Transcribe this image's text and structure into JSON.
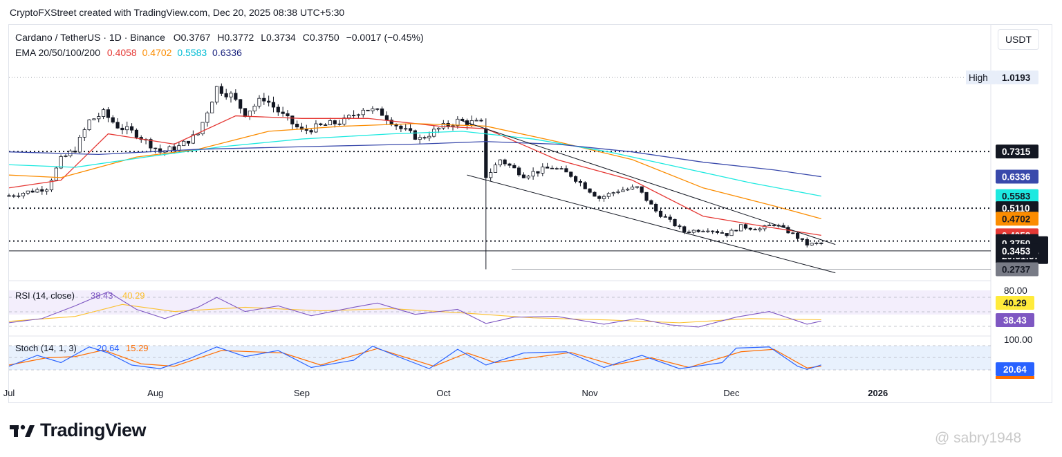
{
  "header": {
    "created_line": "CryptoFXStreet created with TradingView.com, Dec 20, 2025 08:38 UTC+5:30",
    "symbol": "Cardano / TetherUS · 1D · Binance",
    "o_label": "O",
    "o_value": "0.3767",
    "h_label": "H",
    "h_value": "0.3772",
    "l_label": "L",
    "l_value": "0.3734",
    "c_label": "C",
    "c_value": "0.3750",
    "change": "−0.0017 (−0.45%)",
    "ema_label": "EMA 20/50/100/200",
    "ema_values": [
      "0.4058",
      "0.4702",
      "0.5583",
      "0.6336"
    ]
  },
  "currency_button": "USDT",
  "brand": {
    "name": "TradingView",
    "watermark": "@ sabry1948"
  },
  "colors": {
    "up": "#ffffff",
    "down": "#131722",
    "ema20": "#e53935",
    "ema50": "#fb8c00",
    "ema100": "#1de9e0",
    "ema200": "#3949ab",
    "rsi": "#7e57c2",
    "rsi_ma": "#fbc02d",
    "stoch_k": "#2962ff",
    "stoch_d": "#ff6d00",
    "channel": "#131722"
  },
  "chart_data": [
    {
      "type": "candlestick",
      "symbol": "ADA/USDT",
      "timeframe": "1D",
      "x_labels": [
        "Jul",
        "Aug",
        "Sep",
        "Oct",
        "Nov",
        "Dec",
        "2026"
      ],
      "x_range": [
        "2025-07-01",
        "2026-01-08"
      ],
      "y_range": [
        0.25,
        1.05
      ],
      "close_path": [
        {
          "d": "2025-07-01",
          "v": 0.56
        },
        {
          "d": "2025-07-05",
          "v": 0.575
        },
        {
          "d": "2025-07-09",
          "v": 0.59
        },
        {
          "d": "2025-07-12",
          "v": 0.7
        },
        {
          "d": "2025-07-15",
          "v": 0.74
        },
        {
          "d": "2025-07-18",
          "v": 0.85
        },
        {
          "d": "2025-07-21",
          "v": 0.88
        },
        {
          "d": "2025-07-24",
          "v": 0.83
        },
        {
          "d": "2025-07-28",
          "v": 0.8
        },
        {
          "d": "2025-08-02",
          "v": 0.73
        },
        {
          "d": "2025-08-06",
          "v": 0.75
        },
        {
          "d": "2025-08-10",
          "v": 0.8
        },
        {
          "d": "2025-08-14",
          "v": 0.98
        },
        {
          "d": "2025-08-17",
          "v": 0.95
        },
        {
          "d": "2025-08-20",
          "v": 0.88
        },
        {
          "d": "2025-08-24",
          "v": 0.94
        },
        {
          "d": "2025-08-28",
          "v": 0.87
        },
        {
          "d": "2025-09-01",
          "v": 0.81
        },
        {
          "d": "2025-09-05",
          "v": 0.83
        },
        {
          "d": "2025-09-10",
          "v": 0.85
        },
        {
          "d": "2025-09-14",
          "v": 0.9
        },
        {
          "d": "2025-09-18",
          "v": 0.88
        },
        {
          "d": "2025-09-22",
          "v": 0.82
        },
        {
          "d": "2025-09-26",
          "v": 0.78
        },
        {
          "d": "2025-09-30",
          "v": 0.82
        },
        {
          "d": "2025-10-04",
          "v": 0.85
        },
        {
          "d": "2025-10-09",
          "v": 0.84
        },
        {
          "d": "2025-10-10",
          "v": 0.63
        },
        {
          "d": "2025-10-13",
          "v": 0.7
        },
        {
          "d": "2025-10-18",
          "v": 0.64
        },
        {
          "d": "2025-10-24",
          "v": 0.67
        },
        {
          "d": "2025-10-28",
          "v": 0.64
        },
        {
          "d": "2025-11-03",
          "v": 0.55
        },
        {
          "d": "2025-11-07",
          "v": 0.58
        },
        {
          "d": "2025-11-11",
          "v": 0.59
        },
        {
          "d": "2025-11-15",
          "v": 0.5
        },
        {
          "d": "2025-11-21",
          "v": 0.42
        },
        {
          "d": "2025-11-26",
          "v": 0.43
        },
        {
          "d": "2025-11-30",
          "v": 0.41
        },
        {
          "d": "2025-12-03",
          "v": 0.44
        },
        {
          "d": "2025-12-07",
          "v": 0.43
        },
        {
          "d": "2025-12-10",
          "v": 0.45
        },
        {
          "d": "2025-12-14",
          "v": 0.41
        },
        {
          "d": "2025-12-17",
          "v": 0.37
        },
        {
          "d": "2025-12-20",
          "v": 0.375
        }
      ],
      "ema": [
        {
          "name": "EMA 20",
          "last": 0.4058,
          "points": [
            {
              "d": "2025-07-01",
              "v": 0.59
            },
            {
              "d": "2025-07-12",
              "v": 0.62
            },
            {
              "d": "2025-07-22",
              "v": 0.8
            },
            {
              "d": "2025-08-05",
              "v": 0.76
            },
            {
              "d": "2025-08-18",
              "v": 0.87
            },
            {
              "d": "2025-09-01",
              "v": 0.86
            },
            {
              "d": "2025-09-15",
              "v": 0.86
            },
            {
              "d": "2025-09-30",
              "v": 0.83
            },
            {
              "d": "2025-10-10",
              "v": 0.82
            },
            {
              "d": "2025-10-25",
              "v": 0.7
            },
            {
              "d": "2025-11-10",
              "v": 0.62
            },
            {
              "d": "2025-11-25",
              "v": 0.48
            },
            {
              "d": "2025-12-08",
              "v": 0.44
            },
            {
              "d": "2025-12-20",
              "v": 0.4058
            }
          ]
        },
        {
          "name": "EMA 50",
          "last": 0.4702,
          "points": [
            {
              "d": "2025-07-01",
              "v": 0.64
            },
            {
              "d": "2025-07-12",
              "v": 0.63
            },
            {
              "d": "2025-07-28",
              "v": 0.71
            },
            {
              "d": "2025-08-10",
              "v": 0.74
            },
            {
              "d": "2025-08-25",
              "v": 0.81
            },
            {
              "d": "2025-09-10",
              "v": 0.83
            },
            {
              "d": "2025-09-25",
              "v": 0.84
            },
            {
              "d": "2025-10-10",
              "v": 0.83
            },
            {
              "d": "2025-10-25",
              "v": 0.77
            },
            {
              "d": "2025-11-10",
              "v": 0.7
            },
            {
              "d": "2025-11-25",
              "v": 0.59
            },
            {
              "d": "2025-12-10",
              "v": 0.52
            },
            {
              "d": "2025-12-20",
              "v": 0.4702
            }
          ]
        },
        {
          "name": "EMA 100",
          "last": 0.5583,
          "points": [
            {
              "d": "2025-07-01",
              "v": 0.68
            },
            {
              "d": "2025-07-15",
              "v": 0.67
            },
            {
              "d": "2025-07-30",
              "v": 0.71
            },
            {
              "d": "2025-08-15",
              "v": 0.75
            },
            {
              "d": "2025-09-01",
              "v": 0.78
            },
            {
              "d": "2025-09-20",
              "v": 0.8
            },
            {
              "d": "2025-10-05",
              "v": 0.81
            },
            {
              "d": "2025-10-20",
              "v": 0.78
            },
            {
              "d": "2025-11-05",
              "v": 0.73
            },
            {
              "d": "2025-11-20",
              "v": 0.67
            },
            {
              "d": "2025-12-05",
              "v": 0.61
            },
            {
              "d": "2025-12-20",
              "v": 0.5583
            }
          ]
        },
        {
          "name": "EMA 200",
          "last": 0.6336,
          "points": [
            {
              "d": "2025-07-01",
              "v": 0.73
            },
            {
              "d": "2025-07-20",
              "v": 0.72
            },
            {
              "d": "2025-08-10",
              "v": 0.74
            },
            {
              "d": "2025-09-01",
              "v": 0.75
            },
            {
              "d": "2025-09-25",
              "v": 0.76
            },
            {
              "d": "2025-10-10",
              "v": 0.77
            },
            {
              "d": "2025-10-25",
              "v": 0.76
            },
            {
              "d": "2025-11-10",
              "v": 0.73
            },
            {
              "d": "2025-11-25",
              "v": 0.69
            },
            {
              "d": "2025-12-10",
              "v": 0.66
            },
            {
              "d": "2025-12-20",
              "v": 0.6336
            }
          ]
        }
      ],
      "channel_lines": [
        {
          "from": {
            "d": "2025-10-05",
            "v": 0.85
          },
          "to": {
            "d": "2025-12-23",
            "v": 0.37
          }
        },
        {
          "from": {
            "d": "2025-10-06",
            "v": 0.64
          },
          "to": {
            "d": "2025-12-23",
            "v": 0.26
          }
        }
      ],
      "horizontal_levels": [
        0.7315,
        0.511,
        0.3836,
        0.3453
      ],
      "high_line": 1.0193,
      "low_line": 0.2737,
      "price_labels": [
        {
          "value": "1.0193",
          "label": "High"
        },
        {
          "value": "0.7315"
        },
        {
          "value": "0.6336"
        },
        {
          "value": "0.5583"
        },
        {
          "value": "0.5110"
        },
        {
          "value": "0.4702"
        },
        {
          "value": "0.4058"
        },
        {
          "value": "0.3836"
        },
        {
          "value": "0.3750",
          "sub": "20:51:57"
        },
        {
          "value": "0.3453"
        },
        {
          "value": "0.2737"
        }
      ]
    },
    {
      "type": "line",
      "name": "RSI (14, close)",
      "values_shown": [
        "38.43",
        "40.29"
      ],
      "level_label": "80.00",
      "series": [
        {
          "name": "RSI",
          "last": 38.43,
          "points": [
            {
              "d": "2025-07-01",
              "v": 36
            },
            {
              "d": "2025-07-08",
              "v": 42
            },
            {
              "d": "2025-07-15",
              "v": 60
            },
            {
              "d": "2025-07-22",
              "v": 80
            },
            {
              "d": "2025-07-28",
              "v": 55
            },
            {
              "d": "2025-08-03",
              "v": 42
            },
            {
              "d": "2025-08-10",
              "v": 58
            },
            {
              "d": "2025-08-14",
              "v": 72
            },
            {
              "d": "2025-08-20",
              "v": 52
            },
            {
              "d": "2025-08-27",
              "v": 60
            },
            {
              "d": "2025-09-03",
              "v": 46
            },
            {
              "d": "2025-09-12",
              "v": 58
            },
            {
              "d": "2025-09-17",
              "v": 64
            },
            {
              "d": "2025-09-25",
              "v": 48
            },
            {
              "d": "2025-10-04",
              "v": 55
            },
            {
              "d": "2025-10-10",
              "v": 35
            },
            {
              "d": "2025-10-16",
              "v": 44
            },
            {
              "d": "2025-10-25",
              "v": 45
            },
            {
              "d": "2025-11-04",
              "v": 34
            },
            {
              "d": "2025-11-11",
              "v": 42
            },
            {
              "d": "2025-11-18",
              "v": 33
            },
            {
              "d": "2025-11-24",
              "v": 30
            },
            {
              "d": "2025-12-02",
              "v": 44
            },
            {
              "d": "2025-12-09",
              "v": 52
            },
            {
              "d": "2025-12-17",
              "v": 34
            },
            {
              "d": "2025-12-20",
              "v": 38.43
            }
          ]
        },
        {
          "name": "RSI MA",
          "last": 40.29,
          "points": [
            {
              "d": "2025-07-01",
              "v": 38
            },
            {
              "d": "2025-07-15",
              "v": 45
            },
            {
              "d": "2025-07-25",
              "v": 62
            },
            {
              "d": "2025-08-05",
              "v": 52
            },
            {
              "d": "2025-08-20",
              "v": 58
            },
            {
              "d": "2025-09-05",
              "v": 53
            },
            {
              "d": "2025-09-20",
              "v": 56
            },
            {
              "d": "2025-10-05",
              "v": 50
            },
            {
              "d": "2025-10-20",
              "v": 43
            },
            {
              "d": "2025-11-05",
              "v": 40
            },
            {
              "d": "2025-11-20",
              "v": 36
            },
            {
              "d": "2025-12-05",
              "v": 42
            },
            {
              "d": "2025-12-20",
              "v": 40.29
            }
          ]
        }
      ]
    },
    {
      "type": "line",
      "name": "Stoch (14, 1, 3)",
      "values_shown": [
        "20.64",
        "15.29"
      ],
      "level_label": "100.00",
      "series": [
        {
          "name": "%K",
          "last": 20.64,
          "points": [
            {
              "d": "2025-07-01",
              "v": 15
            },
            {
              "d": "2025-07-07",
              "v": 60
            },
            {
              "d": "2025-07-12",
              "v": 30
            },
            {
              "d": "2025-07-18",
              "v": 95
            },
            {
              "d": "2025-07-22",
              "v": 70
            },
            {
              "d": "2025-07-27",
              "v": 20
            },
            {
              "d": "2025-08-02",
              "v": 5
            },
            {
              "d": "2025-08-08",
              "v": 45
            },
            {
              "d": "2025-08-14",
              "v": 95
            },
            {
              "d": "2025-08-20",
              "v": 55
            },
            {
              "d": "2025-08-27",
              "v": 80
            },
            {
              "d": "2025-09-03",
              "v": 10
            },
            {
              "d": "2025-09-12",
              "v": 40
            },
            {
              "d": "2025-09-16",
              "v": 98
            },
            {
              "d": "2025-09-22",
              "v": 50
            },
            {
              "d": "2025-09-28",
              "v": 5
            },
            {
              "d": "2025-10-04",
              "v": 85
            },
            {
              "d": "2025-10-10",
              "v": 20
            },
            {
              "d": "2025-10-18",
              "v": 70
            },
            {
              "d": "2025-10-27",
              "v": 75
            },
            {
              "d": "2025-11-04",
              "v": 10
            },
            {
              "d": "2025-11-12",
              "v": 60
            },
            {
              "d": "2025-11-20",
              "v": 5
            },
            {
              "d": "2025-11-29",
              "v": 30
            },
            {
              "d": "2025-12-02",
              "v": 90
            },
            {
              "d": "2025-12-09",
              "v": 95
            },
            {
              "d": "2025-12-15",
              "v": 15
            },
            {
              "d": "2025-12-17",
              "v": 2
            },
            {
              "d": "2025-12-20",
              "v": 20.64
            }
          ]
        },
        {
          "name": "%D",
          "last": 15.29,
          "points": [
            {
              "d": "2025-07-01",
              "v": 20
            },
            {
              "d": "2025-07-09",
              "v": 50
            },
            {
              "d": "2025-07-15",
              "v": 55
            },
            {
              "d": "2025-07-21",
              "v": 82
            },
            {
              "d": "2025-07-29",
              "v": 25
            },
            {
              "d": "2025-08-05",
              "v": 15
            },
            {
              "d": "2025-08-15",
              "v": 80
            },
            {
              "d": "2025-08-28",
              "v": 70
            },
            {
              "d": "2025-09-05",
              "v": 20
            },
            {
              "d": "2025-09-17",
              "v": 88
            },
            {
              "d": "2025-09-29",
              "v": 15
            },
            {
              "d": "2025-10-06",
              "v": 70
            },
            {
              "d": "2025-10-12",
              "v": 30
            },
            {
              "d": "2025-10-28",
              "v": 72
            },
            {
              "d": "2025-11-06",
              "v": 20
            },
            {
              "d": "2025-11-14",
              "v": 50
            },
            {
              "d": "2025-11-22",
              "v": 10
            },
            {
              "d": "2025-12-03",
              "v": 75
            },
            {
              "d": "2025-12-10",
              "v": 85
            },
            {
              "d": "2025-12-17",
              "v": 8
            },
            {
              "d": "2025-12-20",
              "v": 15.29
            }
          ]
        }
      ]
    }
  ]
}
